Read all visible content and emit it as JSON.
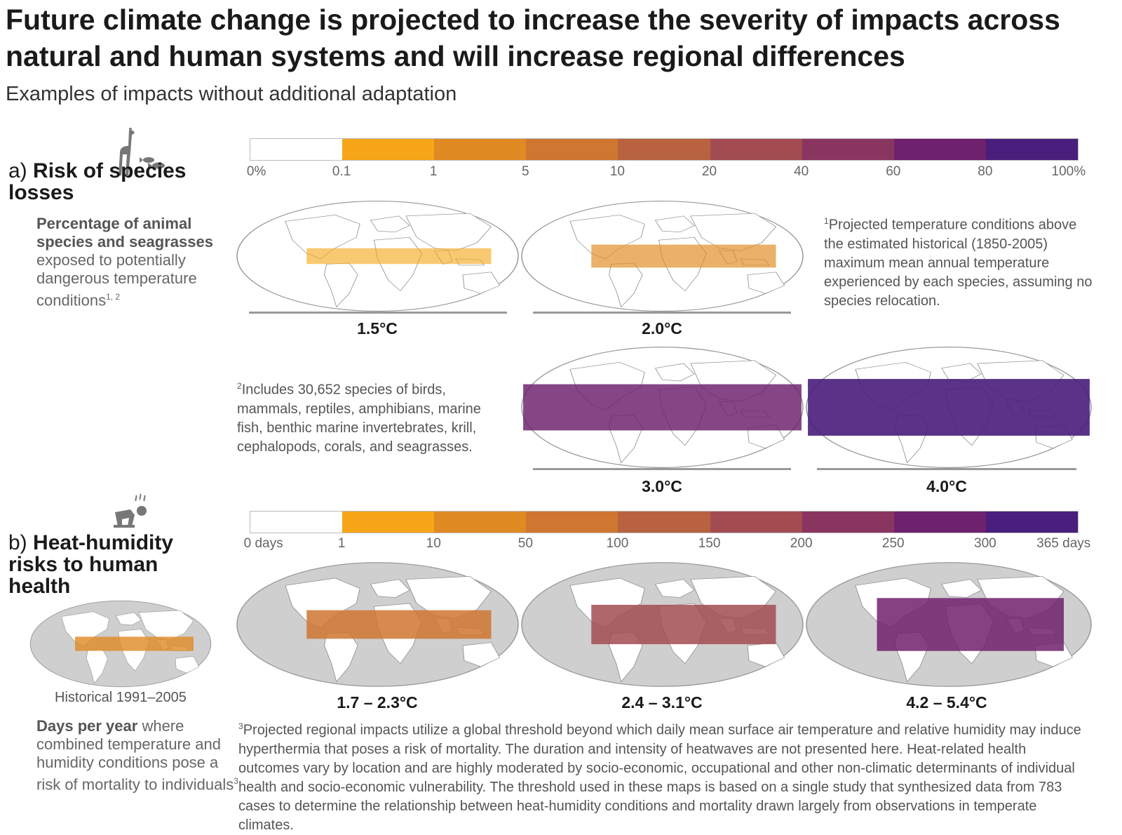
{
  "title": "Future climate change is projected to increase the severity of impacts across natural and human systems and will increase regional differences",
  "subtitle": "Examples of impacts without additional adaptation",
  "section_a": {
    "letter": "a)",
    "heading": "Risk of species losses",
    "desc_bold": "Percentage of animal species and seagrasses",
    "desc_rest": "exposed to potentially dangerous temperature conditions",
    "desc_sup": "1, 2",
    "icon": "giraffe-fish-icon",
    "scale_colors": [
      "#ffffff",
      "#f6a618",
      "#e08a23",
      "#cf7630",
      "#b8623f",
      "#a24c52",
      "#8a3560",
      "#6e216d",
      "#4a1e7c"
    ],
    "scale_ticks": [
      "0%",
      "0.1",
      "1",
      "5",
      "10",
      "20",
      "40",
      "60",
      "80",
      "100%"
    ],
    "maps": [
      {
        "label": "1.5°C",
        "level": 0.15
      },
      {
        "label": "2.0°C",
        "level": 0.3
      },
      {
        "label": "3.0°C",
        "level": 0.7
      },
      {
        "label": "4.0°C",
        "level": 0.9
      }
    ],
    "note1_sup": "1",
    "note1": "Projected temperature conditions above the estimated historical (1850-2005) maximum mean annual temperature experienced by each species, assuming no species relocation.",
    "note2_sup": "2",
    "note2": "Includes 30,652 species of birds, mammals, reptiles, amphibians, marine fish, benthic marine invertebrates, krill, cephalopods, corals, and seagrasses."
  },
  "section_b": {
    "letter": "b)",
    "heading": "Heat-humidity risks to human health",
    "icon": "heat-stressed-person-icon",
    "scale_colors": [
      "#ffffff",
      "#f6a618",
      "#e08a23",
      "#cf7630",
      "#b8623f",
      "#a24c52",
      "#8a3560",
      "#6e216d",
      "#4a1e7c"
    ],
    "scale_ticks": [
      "0 days",
      "1",
      "10",
      "50",
      "100",
      "150",
      "200",
      "250",
      "300",
      "365 days"
    ],
    "historical_label": "Historical 1991–2005",
    "maps": [
      {
        "label": "1.7 – 2.3°C",
        "level": 0.35
      },
      {
        "label": "2.4 – 3.1°C",
        "level": 0.55
      },
      {
        "label": "4.2 – 5.4°C",
        "level": 0.8
      }
    ],
    "desc_bold": "Days per year",
    "desc_rest": "where combined temperature and humidity conditions pose a risk of mortality to individuals",
    "desc_sup": "3",
    "note3_sup": "3",
    "note3": "Projected regional impacts utilize a global threshold beyond which daily mean surface air temperature and relative humidity may induce hyperthermia that poses a risk of mortality. The duration and intensity of heatwaves are not presented here. Heat-related health outcomes vary by location and are highly moderated by socio-economic, occupational and other non-climatic determinants of individual health and socio-economic vulnerability. The threshold used in these maps is based on a single study that synthesized data from 783 cases to determine the relationship between heat-humidity conditions and mortality drawn largely from observations in temperate climates."
  }
}
